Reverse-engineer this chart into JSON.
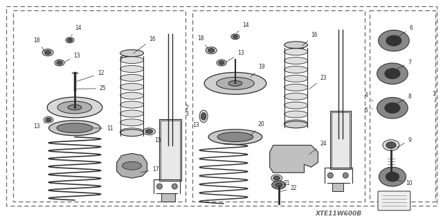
{
  "bg_color": "#ffffff",
  "line_color": "#2a2a2a",
  "watermark": "XTE11W600B",
  "figsize": [
    6.4,
    3.19
  ],
  "dpi": 100
}
